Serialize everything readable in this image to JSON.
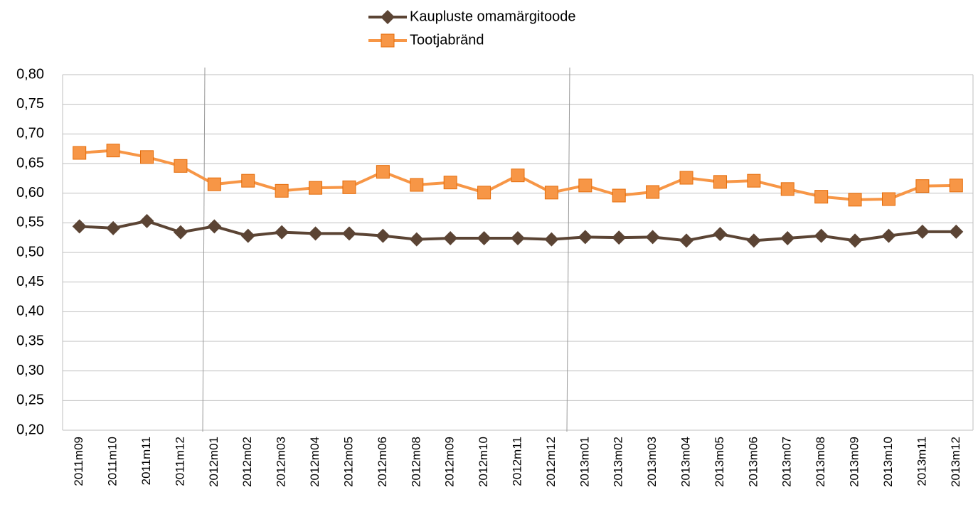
{
  "chart_data": {
    "type": "line",
    "categories": [
      "2011m09",
      "2011m10",
      "2011m11",
      "2011m12",
      "2012m01",
      "2012m02",
      "2012m03",
      "2012m04",
      "2012m05",
      "2012m06",
      "2012m08",
      "2012m09",
      "2012m10",
      "2012m11",
      "2012m12",
      "2013m01",
      "2013m02",
      "2013m03",
      "2013m04",
      "2013m05",
      "2013m06",
      "2013m07",
      "2013m08",
      "2013m09",
      "2013m10",
      "2013m11",
      "2013m12"
    ],
    "series": [
      {
        "name": "Kaupluste omamärgitoode",
        "color": "#5b4434",
        "marker": "diamond",
        "values": [
          0.544,
          0.541,
          0.553,
          0.534,
          0.544,
          0.528,
          0.534,
          0.532,
          0.532,
          0.528,
          0.522,
          0.524,
          0.524,
          0.524,
          0.522,
          0.526,
          0.525,
          0.526,
          0.52,
          0.531,
          0.52,
          0.524,
          0.528,
          0.52,
          0.528,
          0.535,
          0.535
        ]
      },
      {
        "name": "Tootjabränd",
        "color": "#f79646",
        "marker": "square",
        "values": [
          0.668,
          0.672,
          0.661,
          0.646,
          0.615,
          0.621,
          0.604,
          0.609,
          0.61,
          0.636,
          0.614,
          0.618,
          0.601,
          0.63,
          0.601,
          0.613,
          0.596,
          0.602,
          0.626,
          0.619,
          0.621,
          0.607,
          0.594,
          0.589,
          0.59,
          0.612,
          0.613
        ]
      }
    ],
    "ylim": [
      0.2,
      0.8
    ],
    "yticks": [
      {
        "value": 0.2,
        "label": "0,20"
      },
      {
        "value": 0.25,
        "label": "0,25"
      },
      {
        "value": 0.3,
        "label": "0,30"
      },
      {
        "value": 0.35,
        "label": "0,35"
      },
      {
        "value": 0.4,
        "label": "0,40"
      },
      {
        "value": 0.45,
        "label": "0,45"
      },
      {
        "value": 0.5,
        "label": "0,50"
      },
      {
        "value": 0.55,
        "label": "0,55"
      },
      {
        "value": 0.6,
        "label": "0,60"
      },
      {
        "value": 0.65,
        "label": "0,65"
      },
      {
        "value": 0.7,
        "label": "0,70"
      },
      {
        "value": 0.75,
        "label": "0,75"
      },
      {
        "value": 0.8,
        "label": "0,80"
      }
    ],
    "grid": true,
    "legend": "top"
  }
}
